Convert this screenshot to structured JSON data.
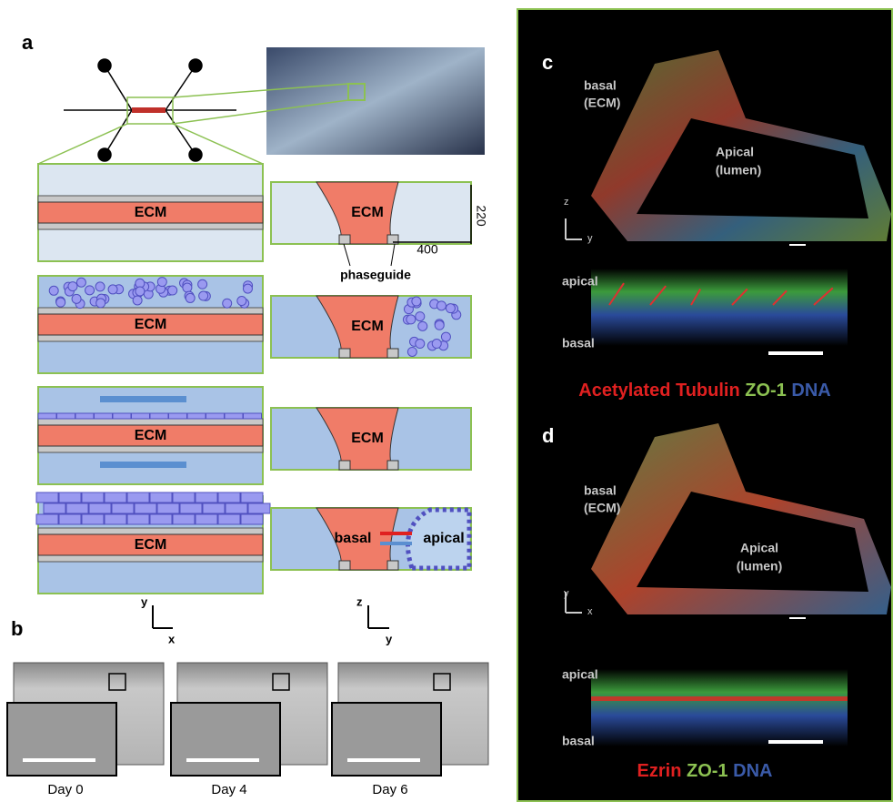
{
  "panel_a": {
    "label": "a",
    "rows": [
      {
        "left": "ECM",
        "right": "ECM"
      },
      {
        "left": "ECM",
        "right": "ECM"
      },
      {
        "left": "ECM",
        "right": "ECM"
      },
      {
        "left": "ECM",
        "right": "basal"
      }
    ],
    "apical": "apical",
    "height_dim": "220",
    "width_dim": "400",
    "phaseguide": "phaseguide",
    "axes_left": {
      "vertical": "y",
      "horizontal": "x"
    },
    "axes_right": {
      "vertical": "z",
      "horizontal": "y"
    }
  },
  "panel_b": {
    "label": "b",
    "days": [
      "Day 0",
      "Day 4",
      "Day 6"
    ]
  },
  "panel_c": {
    "label": "c",
    "basal": "basal",
    "ecm": "(ECM)",
    "apical_top": "Apical",
    "lumen": "(lumen)",
    "axis_vertical": "z",
    "axis_horizontal": "y",
    "strip_apical": "apical",
    "strip_basal": "basal",
    "stain": [
      "Acetylated Tubulin",
      "ZO-1",
      "DNA"
    ]
  },
  "panel_d": {
    "label": "d",
    "basal": "basal",
    "ecm": "(ECM)",
    "apical_top": "Apical",
    "lumen": "(lumen)",
    "axis_vertical": "y",
    "axis_horizontal": "x",
    "strip_apical": "apical",
    "strip_basal": "basal",
    "stain": [
      "Ezrin",
      "ZO-1",
      "DNA"
    ]
  }
}
